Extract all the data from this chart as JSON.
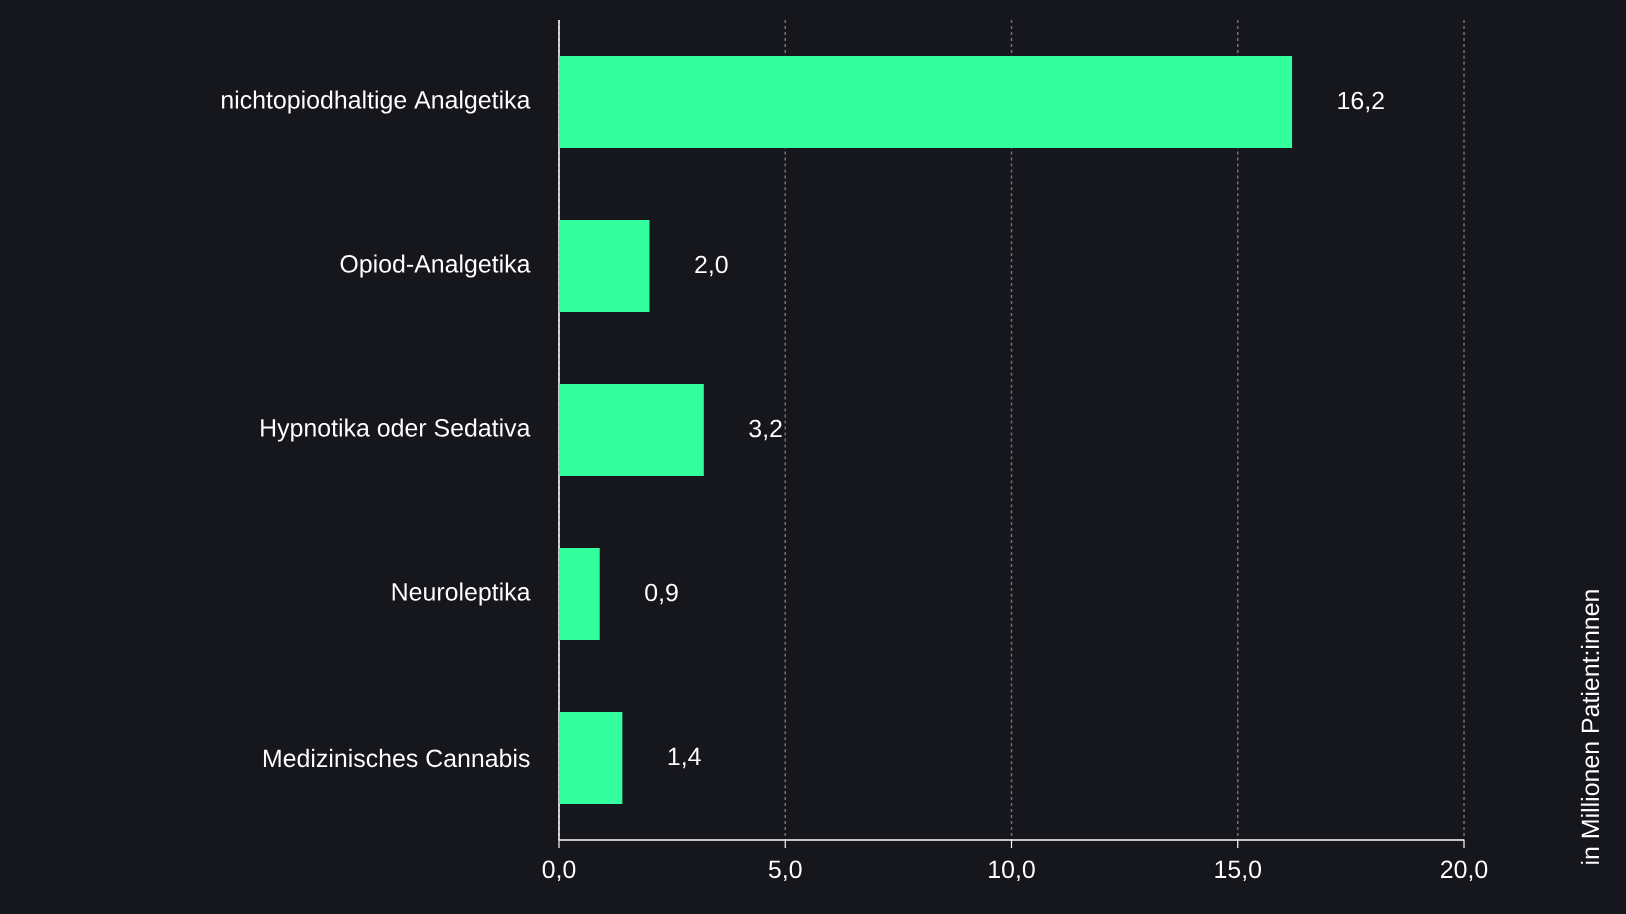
{
  "chart_data": {
    "type": "bar",
    "orientation": "horizontal",
    "annotations": [
      "in Millionen Patient:innen"
    ],
    "categories": [
      "nichtopiodhaltige Analgetika",
      "Opiod-Analgetika",
      "Hypnotika oder Sedativa",
      "Neuroleptika",
      "Medizinisches Cannabis"
    ],
    "values": [
      16.2,
      2.0,
      3.2,
      0.9,
      1.4
    ],
    "value_labels": [
      "16,2",
      "2,0",
      "3,2",
      "0,9",
      "1,4"
    ],
    "color": "#33ff9f",
    "xlim": [
      0,
      20
    ],
    "xticks": [
      {
        "value": 0,
        "label": "0,0"
      },
      {
        "value": 5,
        "label": "5,0"
      },
      {
        "value": 10,
        "label": "10,0"
      },
      {
        "value": 15,
        "label": "15,0"
      },
      {
        "value": 20,
        "label": "20,0"
      }
    ],
    "grid": "x"
  }
}
